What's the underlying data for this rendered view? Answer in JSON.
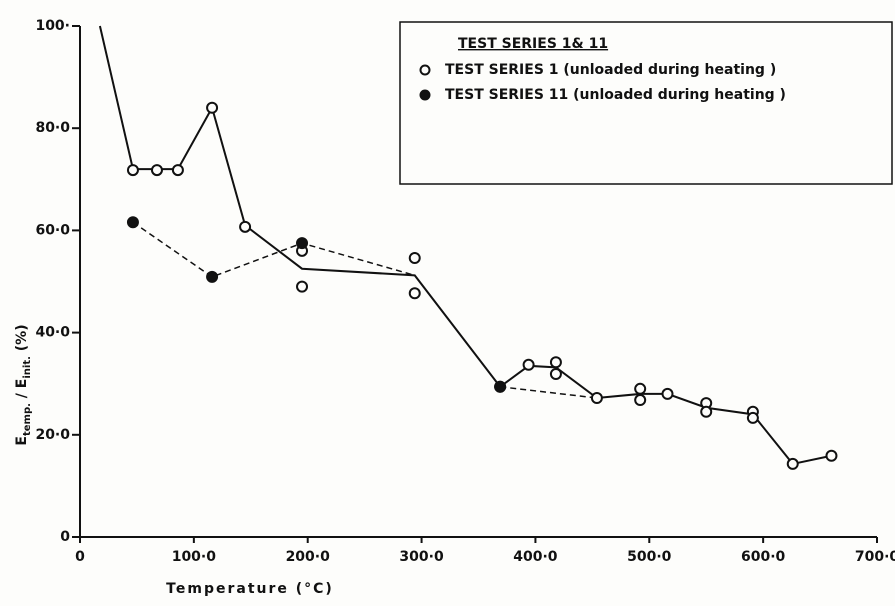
{
  "chart_data": {
    "type": "scatter",
    "xlabel": "Temperature (°C)",
    "ylabel": [
      "E",
      "temp.",
      " / E",
      "init.",
      " (%)"
    ],
    "xlim": [
      0,
      700
    ],
    "ylim": [
      0,
      100
    ],
    "xticks": [
      0,
      {
        "value": 100,
        "label": "100·0"
      },
      {
        "value": 200,
        "label": "200·0"
      },
      {
        "value": 300,
        "label": "300·0"
      },
      {
        "value": 400,
        "label": "400·0"
      },
      {
        "value": 500,
        "label": "500·0"
      },
      {
        "value": 600,
        "label": "600·0"
      },
      {
        "value": 700,
        "label": "700·0"
      }
    ],
    "yticks": [
      0,
      {
        "value": 20,
        "label": "20·0"
      },
      {
        "value": 40,
        "label": "40·0"
      },
      {
        "value": 60,
        "label": "60·0"
      },
      {
        "value": 80,
        "label": "80·0"
      },
      {
        "value": 100,
        "label": "100·"
      }
    ],
    "legend_title": "TEST SERIES 1& 11",
    "legend": "top-right",
    "series": [
      {
        "name": "TEST SERIES 1 (unloaded during heating )",
        "color": "#111",
        "marker": "open",
        "x": [
          46.5,
          67.6,
          86,
          116,
          145,
          195,
          195,
          294,
          294,
          369,
          394,
          418,
          418,
          454,
          492,
          492,
          516,
          550,
          550,
          591,
          591,
          626,
          660
        ],
        "y": [
          71.8,
          71.8,
          71.8,
          84,
          60.7,
          56,
          49,
          54.6,
          47.7,
          29.4,
          33.7,
          34.2,
          31.9,
          27.2,
          29,
          26.8,
          28,
          26.2,
          24.5,
          24.5,
          23.3,
          14.3,
          15.9
        ]
      },
      {
        "name": "TEST SERIES 11 (unloaded during heating )",
        "color": "#111",
        "marker": "filled",
        "x": [
          46.5,
          116,
          195,
          369
        ],
        "y": [
          61.6,
          50.9,
          57.5,
          29.4
        ]
      }
    ],
    "lines": [
      {
        "style": "solid",
        "x": [
          17.5,
          46.5,
          86,
          116,
          145,
          195,
          294,
          369,
          394,
          418,
          454,
          492,
          516,
          550,
          591,
          626,
          660
        ],
        "y": [
          100,
          72,
          72,
          84,
          61,
          52.5,
          51.2,
          29.4,
          33.5,
          33.2,
          27.2,
          28,
          28,
          25.3,
          24,
          14.3,
          15.9
        ]
      },
      {
        "style": "dashed",
        "x": [
          46.5,
          116,
          195,
          294,
          369,
          454
        ],
        "y": [
          61.6,
          50.9,
          57.5,
          51.2,
          29.4,
          27.2
        ]
      }
    ]
  }
}
